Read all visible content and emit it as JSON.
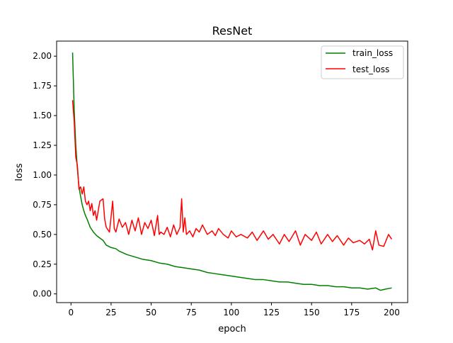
{
  "chart_data": {
    "type": "line",
    "title": "ResNet",
    "xlabel": "epoch",
    "ylabel": "loss",
    "xlim": [
      -8.95,
      209.95
    ],
    "ylim": [
      -0.0734,
      2.1266
    ],
    "x_ticks": [
      0,
      25,
      50,
      75,
      100,
      125,
      150,
      175,
      200
    ],
    "x_tick_labels": [
      "0",
      "25",
      "50",
      "75",
      "100",
      "125",
      "150",
      "175",
      "200"
    ],
    "y_ticks": [
      0.0,
      0.25,
      0.5,
      0.75,
      1.0,
      1.25,
      1.5,
      1.75,
      2.0
    ],
    "y_tick_labels": [
      "0.00",
      "0.25",
      "0.50",
      "0.75",
      "1.00",
      "1.25",
      "1.50",
      "1.75",
      "2.00"
    ],
    "grid": false,
    "legend_position": "top-right",
    "series": [
      {
        "name": "train_loss",
        "color": "#008000",
        "x": [
          1,
          2,
          3,
          4,
          5,
          6,
          7,
          8,
          9,
          10,
          12,
          14,
          16,
          18,
          20,
          22,
          25,
          28,
          30,
          35,
          40,
          45,
          50,
          55,
          60,
          65,
          70,
          75,
          80,
          85,
          90,
          95,
          100,
          105,
          110,
          115,
          120,
          125,
          130,
          135,
          140,
          145,
          150,
          155,
          160,
          165,
          170,
          175,
          180,
          185,
          190,
          193,
          196,
          200
        ],
        "y": [
          2.03,
          1.55,
          1.25,
          1.05,
          0.9,
          0.82,
          0.75,
          0.7,
          0.66,
          0.63,
          0.56,
          0.52,
          0.49,
          0.47,
          0.45,
          0.41,
          0.39,
          0.38,
          0.36,
          0.33,
          0.31,
          0.29,
          0.28,
          0.26,
          0.25,
          0.23,
          0.22,
          0.21,
          0.2,
          0.18,
          0.17,
          0.16,
          0.15,
          0.14,
          0.13,
          0.12,
          0.12,
          0.11,
          0.1,
          0.1,
          0.09,
          0.08,
          0.08,
          0.07,
          0.07,
          0.06,
          0.06,
          0.05,
          0.05,
          0.04,
          0.05,
          0.03,
          0.04,
          0.05
        ]
      },
      {
        "name": "test_loss",
        "color": "#ff0000",
        "x": [
          1,
          2,
          3,
          4,
          5,
          6,
          7,
          8,
          9,
          10,
          11,
          12,
          13,
          14,
          15,
          16,
          18,
          20,
          21,
          22,
          24,
          26,
          27,
          28,
          30,
          32,
          34,
          36,
          38,
          40,
          42,
          44,
          46,
          48,
          50,
          52,
          54,
          55,
          56,
          58,
          60,
          62,
          64,
          66,
          68,
          69,
          70,
          71,
          72,
          74,
          76,
          78,
          80,
          82,
          85,
          88,
          90,
          92,
          95,
          98,
          100,
          103,
          106,
          110,
          113,
          116,
          120,
          123,
          126,
          130,
          133,
          136,
          140,
          143,
          146,
          150,
          153,
          156,
          160,
          163,
          166,
          170,
          173,
          176,
          180,
          183,
          186,
          188,
          190,
          192,
          195,
          198,
          200
        ],
        "y": [
          1.63,
          1.45,
          1.15,
          1.08,
          0.88,
          0.9,
          0.84,
          0.9,
          0.78,
          0.75,
          0.78,
          0.7,
          0.76,
          0.66,
          0.7,
          0.62,
          0.78,
          0.8,
          0.63,
          0.56,
          0.52,
          0.78,
          0.55,
          0.52,
          0.63,
          0.56,
          0.6,
          0.5,
          0.62,
          0.53,
          0.64,
          0.5,
          0.6,
          0.55,
          0.62,
          0.49,
          0.66,
          0.5,
          0.52,
          0.5,
          0.56,
          0.48,
          0.58,
          0.5,
          0.56,
          0.8,
          0.52,
          0.64,
          0.5,
          0.53,
          0.48,
          0.55,
          0.52,
          0.58,
          0.5,
          0.53,
          0.49,
          0.55,
          0.5,
          0.47,
          0.53,
          0.48,
          0.5,
          0.47,
          0.52,
          0.45,
          0.53,
          0.46,
          0.5,
          0.42,
          0.5,
          0.44,
          0.53,
          0.41,
          0.5,
          0.45,
          0.52,
          0.42,
          0.5,
          0.44,
          0.49,
          0.41,
          0.47,
          0.43,
          0.45,
          0.42,
          0.46,
          0.37,
          0.53,
          0.41,
          0.4,
          0.5,
          0.46
        ]
      }
    ]
  }
}
